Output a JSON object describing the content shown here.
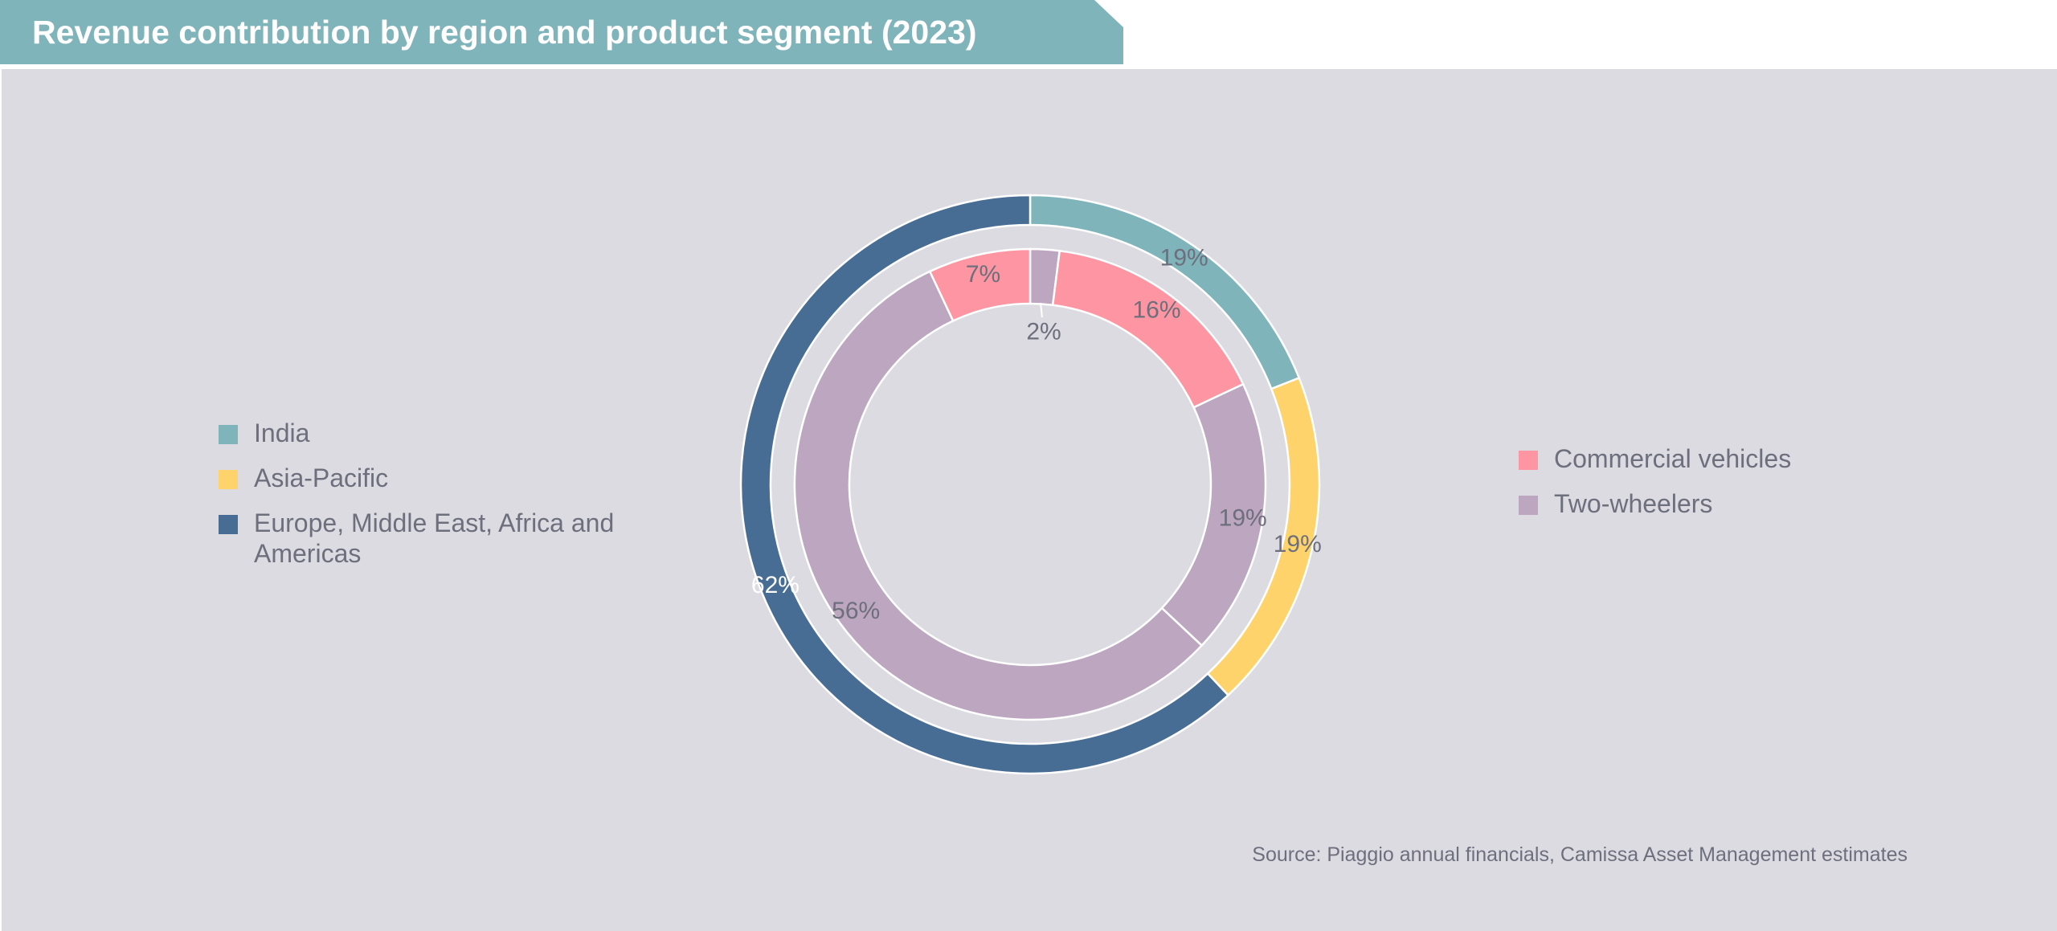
{
  "title": "Revenue contribution by region and product segment (2023)",
  "colors": {
    "banner": "#80b4bb",
    "panel": "#dcdbe2",
    "india": "#80b4bb",
    "asia_pacific": "#fed36b",
    "emea_americas": "#486d94",
    "commercial_vehicles": "#fd95a2",
    "two_wheelers": "#bca6c0"
  },
  "legend_regions": [
    {
      "label": "India",
      "color": "#80b4bb"
    },
    {
      "label": "Asia-Pacific",
      "color": "#fed36b"
    },
    {
      "label": "Europe, Middle East, Africa and Americas",
      "color": "#486d94"
    }
  ],
  "legend_segments": [
    {
      "label": "Commercial vehicles",
      "color": "#fd95a2"
    },
    {
      "label": "Two-wheelers",
      "color": "#bca6c0"
    }
  ],
  "source": "Source: Piaggio annual financials, Camissa Asset Management estimates",
  "chart_data": {
    "type": "pie",
    "variant": "nested-donut",
    "outer_ring": [
      {
        "name": "India",
        "value": 19,
        "label": "19%"
      },
      {
        "name": "Asia-Pacific",
        "value": 19,
        "label": "19%"
      },
      {
        "name": "Europe, Middle East, Africa and Americas",
        "value": 62,
        "label": "62%"
      }
    ],
    "inner_ring": [
      {
        "region": "India",
        "segment": "Two-wheelers",
        "value": 2,
        "label": "2%"
      },
      {
        "region": "India",
        "segment": "Commercial vehicles",
        "value": 16,
        "label": "16%"
      },
      {
        "region": "Asia-Pacific",
        "segment": "Two-wheelers",
        "value": 19,
        "label": "19%"
      },
      {
        "region": "Europe, Middle East, Africa and Americas",
        "segment": "Two-wheelers",
        "value": 56,
        "label": "56%"
      },
      {
        "region": "Europe, Middle East, Africa and Americas",
        "segment": "Commercial vehicles",
        "value": 7,
        "label": "7%"
      }
    ]
  }
}
